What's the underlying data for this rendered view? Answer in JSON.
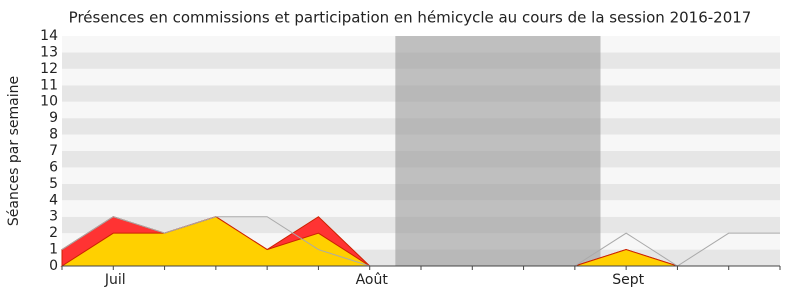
{
  "chart_data": {
    "type": "area",
    "title": "Présences en commissions et participation en hémicycle au cours de la session 2016-2017",
    "y_label": "Séances par semaine",
    "categories": [
      null,
      "Juil",
      null,
      null,
      null,
      null,
      "Août",
      null,
      null,
      null,
      null,
      "Sept",
      null,
      null,
      null
    ],
    "series": [
      {
        "type": "area",
        "color": "#ff3333",
        "values": [
          1,
          3,
          2,
          3,
          1,
          3,
          0,
          0,
          0,
          0,
          0,
          1,
          0,
          0,
          0
        ]
      },
      {
        "type": "area",
        "color": "#ffd000",
        "values": [
          0,
          2,
          2,
          3,
          1,
          2,
          0,
          0,
          0,
          0,
          0,
          1,
          0,
          0,
          0
        ]
      },
      {
        "type": "line",
        "color": "#aaaaaa",
        "values": [
          1,
          3,
          2,
          3,
          3,
          1,
          0,
          null,
          null,
          null,
          0,
          2,
          0,
          2,
          2
        ]
      }
    ],
    "shaded_range": [
      6.5,
      10.5
    ],
    "shaded_color": "#999999",
    "ylim": [
      0,
      14
    ],
    "yticks": [
      0,
      1,
      2,
      3,
      4,
      5,
      6,
      7,
      8,
      9,
      10,
      11,
      12,
      13,
      14
    ],
    "grid": true
  }
}
